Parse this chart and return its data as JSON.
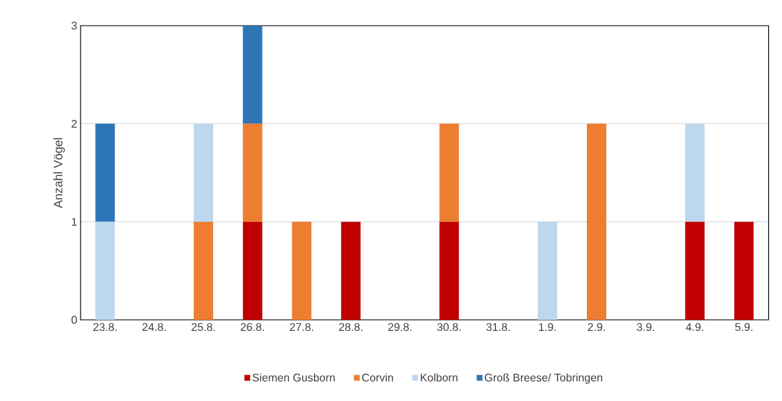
{
  "chart_data": {
    "type": "bar",
    "stacked": true,
    "ylabel": "Anzahl Vögel",
    "categories": [
      "23.8.",
      "24.8.",
      "25.8.",
      "26.8.",
      "27.8.",
      "28.8.",
      "29.8.",
      "30.8.",
      "31.8.",
      "1.9.",
      "2.9.",
      "3.9.",
      "4.9.",
      "5.9."
    ],
    "series": [
      {
        "name": "Siemen Gusborn",
        "color": "#c00000",
        "values": [
          0,
          0,
          0,
          1,
          0,
          1,
          0,
          1,
          0,
          0,
          0,
          0,
          1,
          1
        ]
      },
      {
        "name": "Corvin",
        "color": "#ed7d31",
        "values": [
          0,
          0,
          1,
          1,
          1,
          0,
          0,
          1,
          0,
          0,
          2,
          0,
          0,
          0
        ]
      },
      {
        "name": "Kolborn",
        "color": "#bdd7ee",
        "values": [
          1,
          0,
          1,
          0,
          0,
          0,
          0,
          0,
          0,
          1,
          0,
          0,
          1,
          0
        ]
      },
      {
        "name": "Groß Breese/ Tobringen",
        "color": "#2e75b6",
        "values": [
          1,
          0,
          0,
          1,
          0,
          0,
          0,
          0,
          0,
          0,
          0,
          0,
          0,
          0
        ]
      }
    ],
    "ylim": [
      0,
      3
    ],
    "yticks": [
      0,
      1,
      2,
      3
    ],
    "grid": "y",
    "legend": "bottom"
  }
}
